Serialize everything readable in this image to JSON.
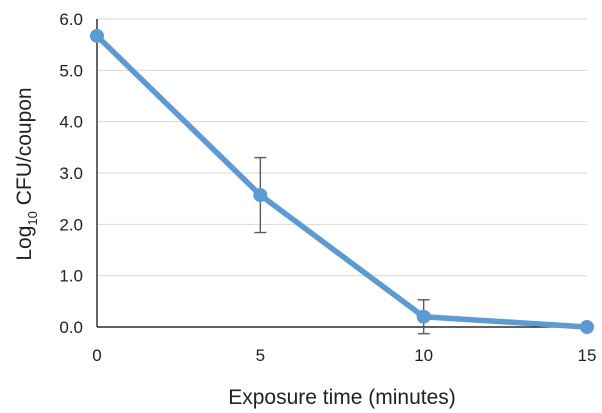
{
  "chart_data": {
    "type": "line",
    "title": "",
    "xlabel": "Exposure time (minutes)",
    "ylabel": {
      "prefix": "Log",
      "subscript": "10",
      "suffix": " CFU/coupon"
    },
    "x": [
      0,
      5,
      10,
      15
    ],
    "series": [
      {
        "values": [
          5.67,
          2.57,
          0.2,
          0.0
        ],
        "error": [
          0.0,
          0.73,
          0.33,
          0.0
        ],
        "color": "#5b9bd5"
      }
    ],
    "xlim": [
      0,
      15
    ],
    "ylim": [
      0,
      6
    ],
    "x_ticks": [
      "0",
      "5",
      "10",
      "15"
    ],
    "y_ticks": [
      "0.0",
      "1.0",
      "2.0",
      "3.0",
      "4.0",
      "5.0",
      "6.0"
    ],
    "grid": "horizontal",
    "legend": "none"
  }
}
